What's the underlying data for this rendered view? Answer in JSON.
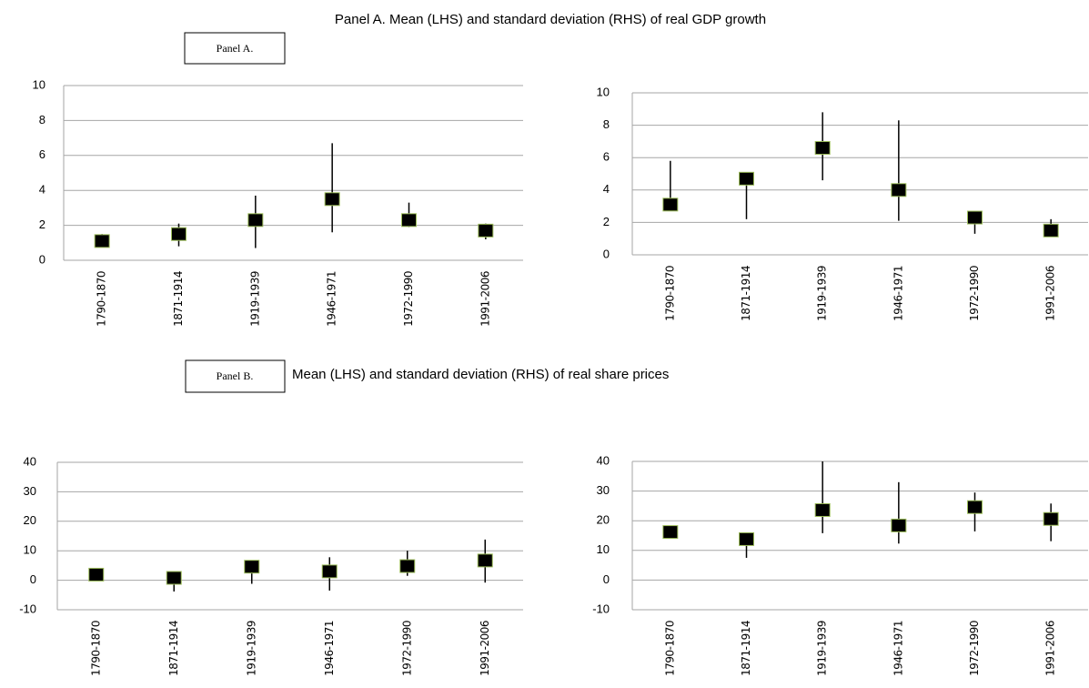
{
  "title": "Panel A. Mean (LHS) and standard deviation (RHS) of real GDP growth",
  "panel_a_label": "Panel A.",
  "panel_b_label": "Panel B.",
  "subtitle": "Mean (LHS) and standard deviation (RHS) of real share prices",
  "chart_data": [
    {
      "type": "range",
      "categories": [
        "1790-1870",
        "1871-1914",
        "1919-1939",
        "1946-1971",
        "1972-1990",
        "1991-2006"
      ],
      "ylim": [
        0,
        10
      ],
      "yticks": [
        0,
        2,
        4,
        6,
        8,
        10
      ],
      "grid": true,
      "series": [
        {
          "color": "#000000",
          "values": [
            1.1,
            1.5,
            2.3,
            3.5,
            2.3,
            1.7
          ],
          "low": [
            0.9,
            0.8,
            0.7,
            1.6,
            1.9,
            1.2
          ],
          "high": [
            1.5,
            2.1,
            3.7,
            6.7,
            3.3,
            2.1
          ]
        }
      ]
    },
    {
      "type": "range",
      "categories": [
        "1790-1870",
        "1871-1914",
        "1919-1939",
        "1946-1971",
        "1972-1990",
        "1991-2006"
      ],
      "ylim": [
        0,
        10
      ],
      "yticks": [
        0,
        2,
        4,
        6,
        8,
        10
      ],
      "grid": true,
      "series": [
        {
          "color": "#000000",
          "values": [
            3.1,
            4.7,
            6.6,
            4.0,
            2.3,
            1.5
          ],
          "low": [
            2.8,
            2.2,
            4.6,
            2.1,
            1.3,
            1.3
          ],
          "high": [
            5.8,
            5.1,
            8.8,
            8.3,
            2.5,
            2.2
          ]
        }
      ]
    },
    {
      "type": "range",
      "categories": [
        "1790-1870",
        "1871-1914",
        "1919-1939",
        "1946-1971",
        "1972-1990",
        "1991-2006"
      ],
      "ylim": [
        -10,
        40
      ],
      "yticks": [
        -10,
        0,
        10,
        20,
        30,
        40
      ],
      "grid": true,
      "series": [
        {
          "color": "#000000",
          "values": [
            1.9,
            0.8,
            4.6,
            3.0,
            4.8,
            6.7
          ],
          "low": [
            1.5,
            -3.8,
            -1.2,
            -3.5,
            1.5,
            -0.8
          ],
          "high": [
            2.5,
            1.5,
            6.0,
            7.8,
            10.0,
            13.8
          ]
        }
      ]
    },
    {
      "type": "range",
      "categories": [
        "1790-1870",
        "1871-1914",
        "1919-1939",
        "1946-1971",
        "1972-1990",
        "1991-2006"
      ],
      "ylim": [
        -10,
        40
      ],
      "yticks": [
        -10,
        0,
        10,
        20,
        30,
        40
      ],
      "grid": true,
      "series": [
        {
          "color": "#000000",
          "values": [
            16.2,
            13.8,
            23.6,
            18.4,
            24.6,
            20.6
          ],
          "low": [
            15.5,
            7.5,
            15.8,
            12.3,
            16.4,
            13.1
          ],
          "high": [
            17.0,
            15.0,
            40.0,
            33.0,
            29.5,
            25.8
          ]
        }
      ]
    }
  ]
}
